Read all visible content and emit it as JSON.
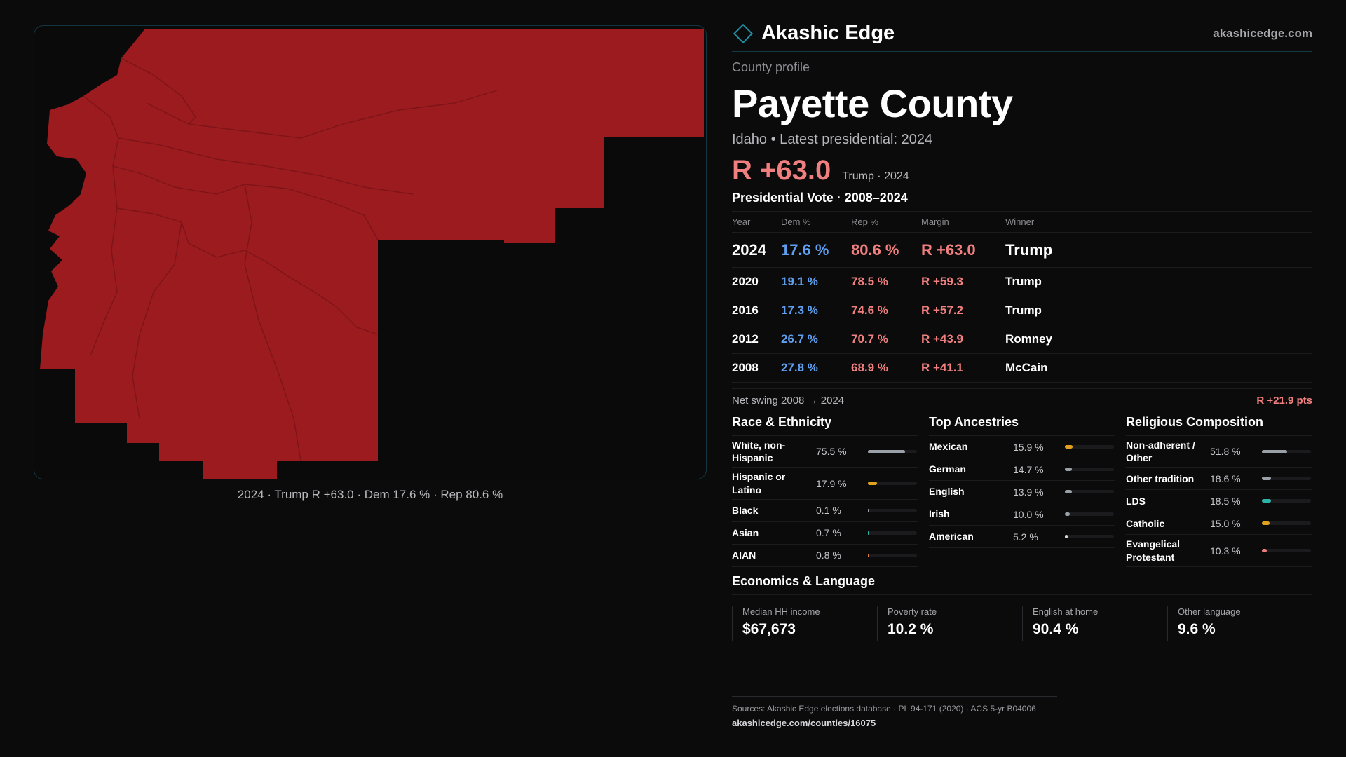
{
  "brand": {
    "name": "Akashic Edge",
    "site": "akashicedge.com"
  },
  "map": {
    "caption": "2024 · Trump R +63.0 · Dem 17.6 % · Rep 80.6 %",
    "fill_color": "#9c1b1f"
  },
  "profile": {
    "kicker": "County profile",
    "title": "Payette County",
    "subtitle": "Idaho • Latest presidential: 2024",
    "headline_margin": "R +63.0",
    "headline_note": "Trump · 2024"
  },
  "votes": {
    "title": "Presidential Vote · 2008–2024",
    "headers": {
      "year": "Year",
      "dem": "Dem %",
      "rep": "Rep %",
      "margin": "Margin",
      "winner": "Winner"
    },
    "rows": [
      {
        "year": "2024",
        "dem": "17.6 %",
        "rep": "80.6 %",
        "margin": "R +63.0",
        "winner": "Trump"
      },
      {
        "year": "2020",
        "dem": "19.1 %",
        "rep": "78.5 %",
        "margin": "R +59.3",
        "winner": "Trump"
      },
      {
        "year": "2016",
        "dem": "17.3 %",
        "rep": "74.6 %",
        "margin": "R +57.2",
        "winner": "Trump"
      },
      {
        "year": "2012",
        "dem": "26.7 %",
        "rep": "70.7 %",
        "margin": "R +43.9",
        "winner": "Romney"
      },
      {
        "year": "2008",
        "dem": "27.8 %",
        "rep": "68.9 %",
        "margin": "R +41.1",
        "winner": "McCain"
      }
    ],
    "swing_label": "Net swing 2008 → 2024",
    "swing_value": "R +21.9 pts"
  },
  "race": {
    "title": "Race & Ethnicity",
    "items": [
      {
        "label": "White, non-Hispanic",
        "pct": "75.5 %",
        "value": 75.5,
        "color": "#9aa0a8"
      },
      {
        "label": "Hispanic or Latino",
        "pct": "17.9 %",
        "value": 17.9,
        "color": "#e0a21e"
      },
      {
        "label": "Black",
        "pct": "0.1 %",
        "value": 0.1,
        "color": "#9aa0a8"
      },
      {
        "label": "Asian",
        "pct": "0.7 %",
        "value": 0.7,
        "color": "#2bb3a8"
      },
      {
        "label": "AIAN",
        "pct": "0.8 %",
        "value": 0.8,
        "color": "#e07a3a"
      }
    ]
  },
  "ancestry": {
    "title": "Top Ancestries",
    "items": [
      {
        "label": "Mexican",
        "pct": "15.9 %",
        "value": 15.9,
        "color": "#e0a21e"
      },
      {
        "label": "German",
        "pct": "14.7 %",
        "value": 14.7,
        "color": "#9aa0a8"
      },
      {
        "label": "English",
        "pct": "13.9 %",
        "value": 13.9,
        "color": "#9aa0a8"
      },
      {
        "label": "Irish",
        "pct": "10.0 %",
        "value": 10.0,
        "color": "#9aa0a8"
      },
      {
        "label": "American",
        "pct": "5.2 %",
        "value": 5.2,
        "color": "#d7d7db"
      }
    ]
  },
  "religion": {
    "title": "Religious Composition",
    "items": [
      {
        "label": "Non-adherent / Other",
        "pct": "51.8 %",
        "value": 51.8,
        "color": "#9aa0a8"
      },
      {
        "label": "Other tradition",
        "pct": "18.6 %",
        "value": 18.6,
        "color": "#9aa0a8"
      },
      {
        "label": "LDS",
        "pct": "18.5 %",
        "value": 18.5,
        "color": "#2bb3a8"
      },
      {
        "label": "Catholic",
        "pct": "15.0 %",
        "value": 15.0,
        "color": "#e0a21e"
      },
      {
        "label": "Evangelical Protestant",
        "pct": "10.3 %",
        "value": 10.3,
        "color": "#f07f7f"
      }
    ]
  },
  "economics": {
    "title": "Economics & Language",
    "items": [
      {
        "label": "Median HH income",
        "value": "$67,673"
      },
      {
        "label": "Poverty rate",
        "value": "10.2 %"
      },
      {
        "label": "English at home",
        "value": "90.4 %"
      },
      {
        "label": "Other language",
        "value": "9.6 %"
      }
    ]
  },
  "footer": {
    "sources": "Sources: Akashic Edge elections database · PL 94-171 (2020) · ACS 5-yr B04006",
    "url": "akashicedge.com/counties/16075"
  }
}
